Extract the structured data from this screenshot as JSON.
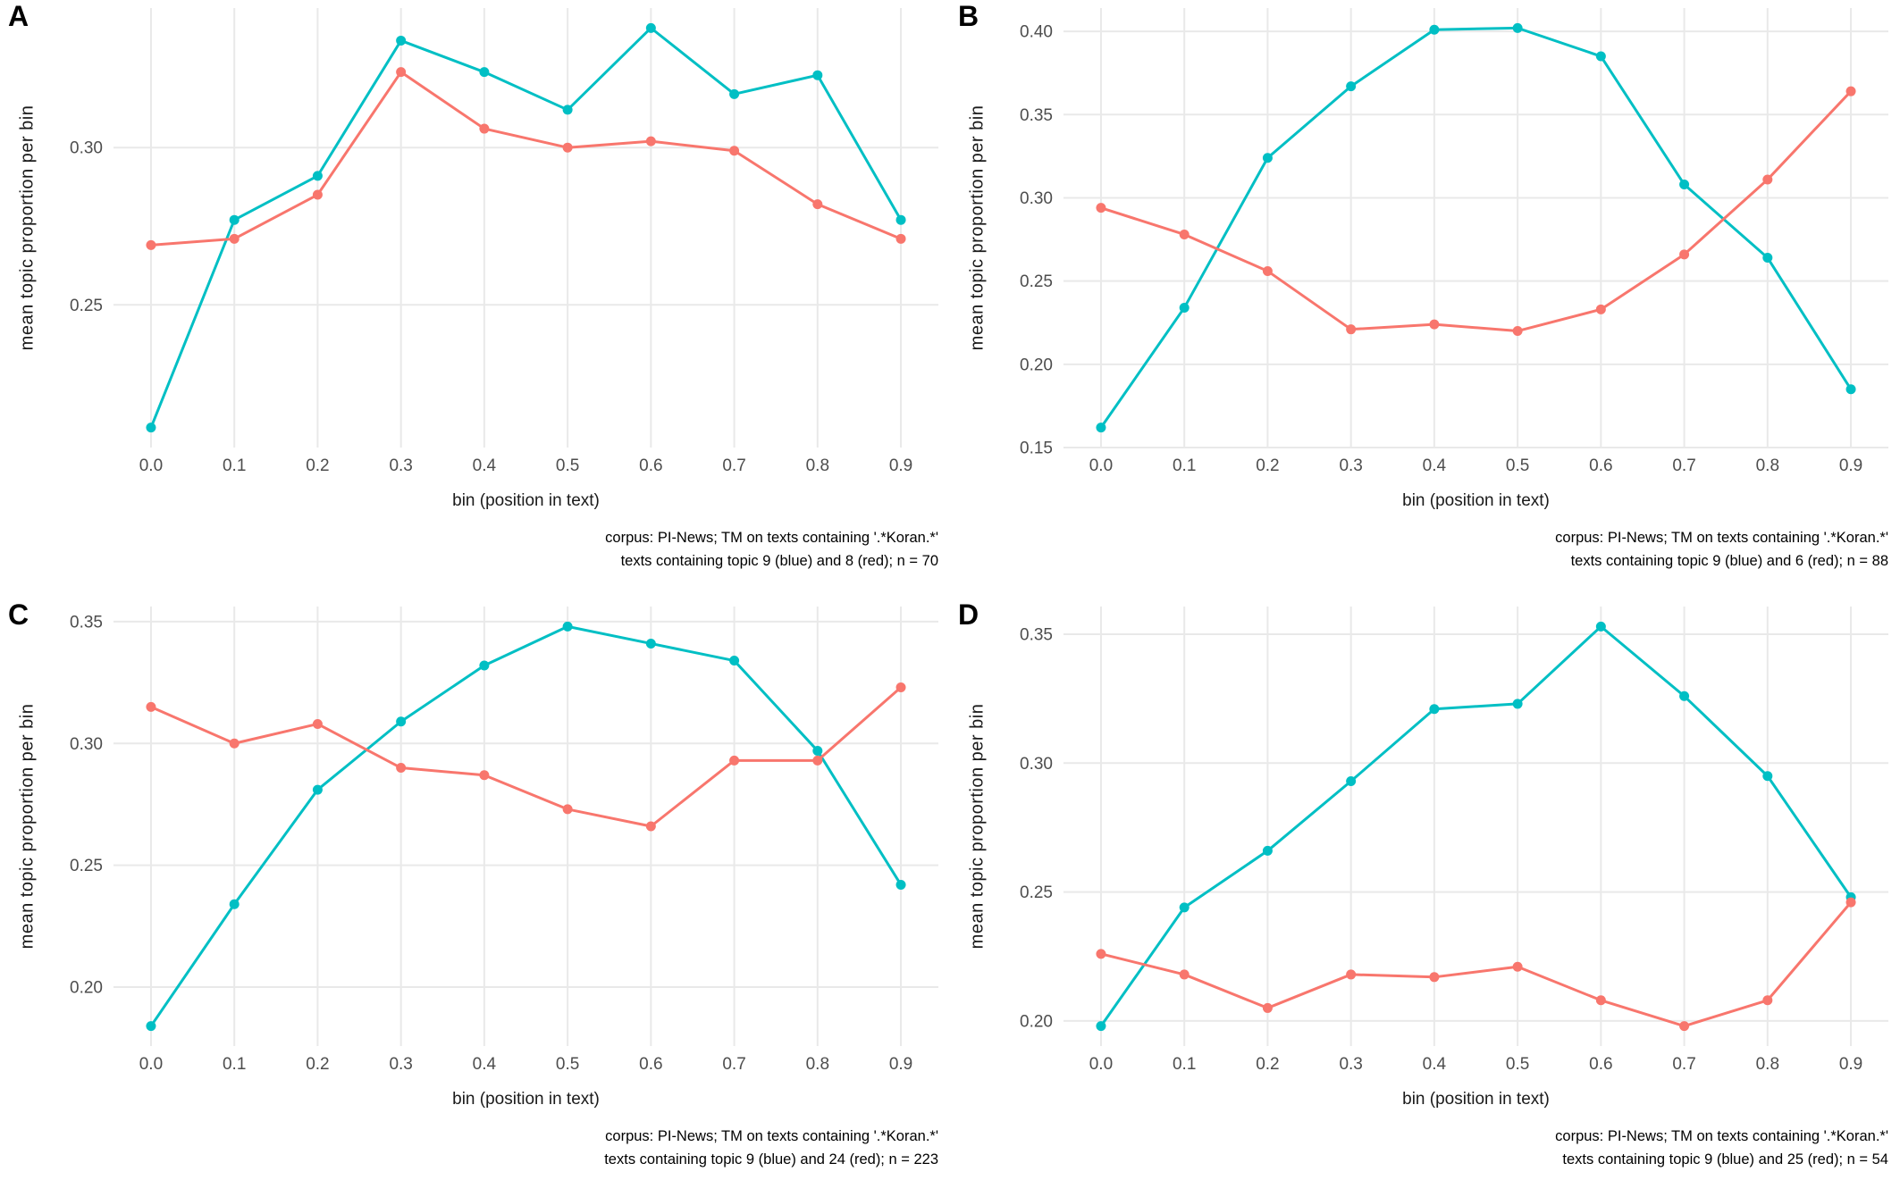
{
  "figure": {
    "description": "2x2 grid of binned topic-proportion line charts (panels A-D), ggplot minimal theme, no legend",
    "colors": {
      "blue_series": "#00BFC4",
      "red_series": "#F8766D",
      "gridline": "#E9E9E9",
      "tick_text": "#4D4D4D",
      "axis_title_text": "#1A1A1A",
      "caption_text": "#000000",
      "background": "#FFFFFF"
    }
  },
  "chart_data": [
    {
      "type": "line",
      "panel_label": "A",
      "xlabel": "bin (position in text)",
      "ylabel": "mean topic proportion per bin",
      "x": [
        0.0,
        0.1,
        0.2,
        0.3,
        0.4,
        0.5,
        0.6,
        0.7,
        0.8,
        0.9
      ],
      "x_tick_labels": [
        "0.0",
        "0.1",
        "0.2",
        "0.3",
        "0.4",
        "0.5",
        "0.6",
        "0.7",
        "0.8",
        "0.9"
      ],
      "y_ticks": [
        0.25,
        0.3
      ],
      "grid": true,
      "legend_position": "none",
      "series": [
        {
          "name": "topic 9 (blue)",
          "color": "#00BFC4",
          "values": [
            0.211,
            0.277,
            0.291,
            0.334,
            0.324,
            0.312,
            0.338,
            0.317,
            0.323,
            0.277
          ]
        },
        {
          "name": "topic 8 (red)",
          "color": "#F8766D",
          "values": [
            0.269,
            0.271,
            0.285,
            0.324,
            0.306,
            0.3,
            0.302,
            0.299,
            0.282,
            0.271
          ]
        }
      ],
      "caption_line1": "corpus: PI-News; TM on texts containing '.*Koran.*'",
      "caption_line2": "texts containing topic 9 (blue) and 8 (red); n = 70"
    },
    {
      "type": "line",
      "panel_label": "B",
      "xlabel": "bin (position in text)",
      "ylabel": "mean topic proportion per bin",
      "x": [
        0.0,
        0.1,
        0.2,
        0.3,
        0.4,
        0.5,
        0.6,
        0.7,
        0.8,
        0.9
      ],
      "x_tick_labels": [
        "0.0",
        "0.1",
        "0.2",
        "0.3",
        "0.4",
        "0.5",
        "0.6",
        "0.7",
        "0.8",
        "0.9"
      ],
      "y_ticks": [
        0.15,
        0.2,
        0.25,
        0.3,
        0.35,
        0.4
      ],
      "grid": true,
      "legend_position": "none",
      "series": [
        {
          "name": "topic 9 (blue)",
          "color": "#00BFC4",
          "values": [
            0.162,
            0.234,
            0.324,
            0.367,
            0.401,
            0.402,
            0.385,
            0.308,
            0.264,
            0.185
          ]
        },
        {
          "name": "topic 6 (red)",
          "color": "#F8766D",
          "values": [
            0.294,
            0.278,
            0.256,
            0.221,
            0.224,
            0.22,
            0.233,
            0.266,
            0.311,
            0.364
          ]
        }
      ],
      "caption_line1": "corpus: PI-News; TM on texts containing '.*Koran.*'",
      "caption_line2": "texts containing topic 9 (blue) and 6 (red); n = 88"
    },
    {
      "type": "line",
      "panel_label": "C",
      "xlabel": "bin (position in text)",
      "ylabel": "mean topic proportion per bin",
      "x": [
        0.0,
        0.1,
        0.2,
        0.3,
        0.4,
        0.5,
        0.6,
        0.7,
        0.8,
        0.9
      ],
      "x_tick_labels": [
        "0.0",
        "0.1",
        "0.2",
        "0.3",
        "0.4",
        "0.5",
        "0.6",
        "0.7",
        "0.8",
        "0.9"
      ],
      "y_ticks": [
        0.2,
        0.25,
        0.3,
        0.35
      ],
      "grid": true,
      "legend_position": "none",
      "series": [
        {
          "name": "topic 9 (blue)",
          "color": "#00BFC4",
          "values": [
            0.184,
            0.234,
            0.281,
            0.309,
            0.332,
            0.348,
            0.341,
            0.334,
            0.297,
            0.242
          ]
        },
        {
          "name": "topic 24 (red)",
          "color": "#F8766D",
          "values": [
            0.315,
            0.3,
            0.308,
            0.29,
            0.287,
            0.273,
            0.266,
            0.293,
            0.293,
            0.323
          ]
        }
      ],
      "caption_line1": "corpus: PI-News; TM on texts containing '.*Koran.*'",
      "caption_line2": "texts containing topic 9 (blue) and 24 (red); n = 223"
    },
    {
      "type": "line",
      "panel_label": "D",
      "xlabel": "bin (position in text)",
      "ylabel": "mean topic proportion per bin",
      "x": [
        0.0,
        0.1,
        0.2,
        0.3,
        0.4,
        0.5,
        0.6,
        0.7,
        0.8,
        0.9
      ],
      "x_tick_labels": [
        "0.0",
        "0.1",
        "0.2",
        "0.3",
        "0.4",
        "0.5",
        "0.6",
        "0.7",
        "0.8",
        "0.9"
      ],
      "y_ticks": [
        0.2,
        0.25,
        0.3,
        0.35
      ],
      "grid": true,
      "legend_position": "none",
      "series": [
        {
          "name": "topic 9 (blue)",
          "color": "#00BFC4",
          "values": [
            0.198,
            0.244,
            0.266,
            0.293,
            0.321,
            0.323,
            0.353,
            0.326,
            0.295,
            0.248
          ]
        },
        {
          "name": "topic 25 (red)",
          "color": "#F8766D",
          "values": [
            0.226,
            0.218,
            0.205,
            0.218,
            0.217,
            0.221,
            0.208,
            0.198,
            0.208,
            0.246
          ]
        }
      ],
      "caption_line1": "corpus: PI-News; TM on texts containing '.*Koran.*'",
      "caption_line2": "texts containing topic 9 (blue) and 25 (red); n = 54"
    }
  ]
}
